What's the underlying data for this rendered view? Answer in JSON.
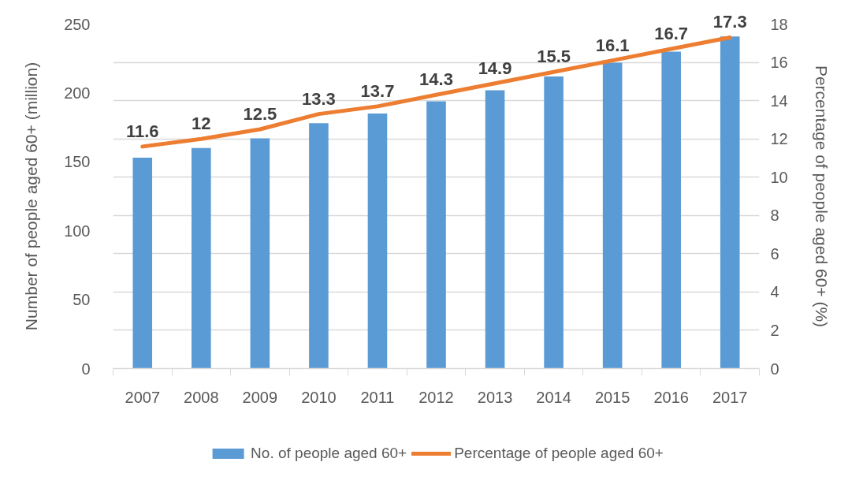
{
  "chart_data": {
    "type": "bar",
    "categories": [
      "2007",
      "2008",
      "2009",
      "2010",
      "2011",
      "2012",
      "2013",
      "2014",
      "2015",
      "2016",
      "2017"
    ],
    "ylabel": "Number of people aged 60+ (million)",
    "y2label": "Percentage of people aged 60+ (%)",
    "ylim": [
      0,
      250
    ],
    "yticks": [
      0,
      50,
      100,
      150,
      200,
      250
    ],
    "y2lim": [
      0,
      18
    ],
    "y2ticks": [
      0,
      2,
      4,
      6,
      8,
      10,
      12,
      14,
      16,
      18
    ],
    "grid": "y",
    "legend": "bottom",
    "series": [
      {
        "name": "No. of people aged 60+",
        "color": "#5b9bd5",
        "values": [
          153,
          160,
          167,
          178,
          185,
          194,
          202,
          212,
          222,
          230,
          241
        ]
      },
      {
        "name": "Percentage of people aged 60+",
        "type": "line",
        "axis": "y2",
        "color": "#ed7d31",
        "values": [
          11.6,
          12,
          12.5,
          13.3,
          13.7,
          14.3,
          14.9,
          15.5,
          16.1,
          16.7,
          17.3
        ],
        "value_labels": [
          "11.6",
          "12",
          "12.5",
          "13.3",
          "13.7",
          "14.3",
          "14.9",
          "15.5",
          "16.1",
          "16.7",
          "17.3"
        ]
      }
    ]
  }
}
